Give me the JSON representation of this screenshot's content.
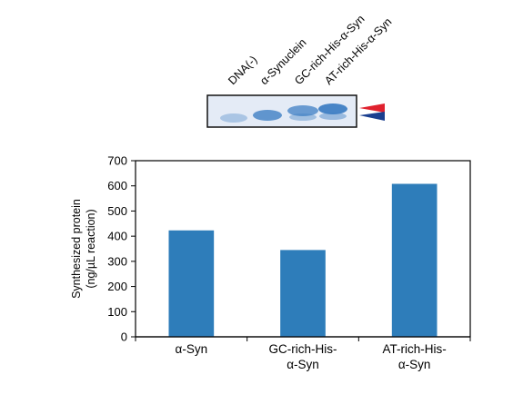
{
  "gel": {
    "lane_labels": [
      "DNA(-)",
      "α-Synuclein",
      "GC-rich-His-α-Syn",
      "AT-rich-His-α-Syn"
    ],
    "background_color": "#e4ebf6",
    "band_color": "#3f7fc4",
    "markers": [
      {
        "name": "upper-marker",
        "color": "#e0212e"
      },
      {
        "name": "lower-marker",
        "color": "#1b3f8f"
      }
    ]
  },
  "chart_data": {
    "type": "bar",
    "categories": [
      [
        "α-Syn"
      ],
      [
        "GC-rich-His-",
        "α-Syn"
      ],
      [
        "AT-rich-His-",
        "α-Syn"
      ]
    ],
    "values": [
      423,
      345,
      608
    ],
    "ylabel_lines": [
      "Synthesized protein",
      "(ng/µL reaction)"
    ],
    "xlabel": "",
    "title": "",
    "ylim": [
      0,
      700
    ],
    "yticks": [
      0,
      100,
      200,
      300,
      400,
      500,
      600,
      700
    ],
    "bar_color": "#2e7dba",
    "grid": false
  }
}
